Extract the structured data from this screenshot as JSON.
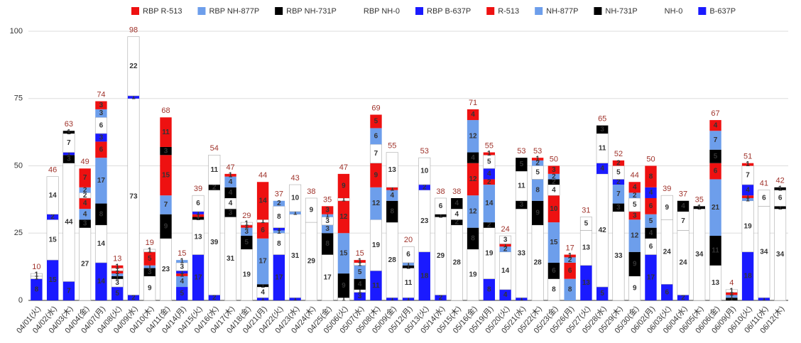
{
  "chart_data": {
    "type": "stacked_bar",
    "categories": [
      "04/01(火)",
      "04/02(水)",
      "04/03(木)",
      "04/04(金)",
      "04/07(月)",
      "04/08(火)",
      "04/09(水)",
      "04/10(木)",
      "04/11(金)",
      "04/14(月)",
      "04/15(火)",
      "04/16(水)",
      "04/17(木)",
      "04/18(金)",
      "04/21(月)",
      "04/22(火)",
      "04/23(水)",
      "04/24(木)",
      "04/25(金)",
      "05/06(火)",
      "05/07(水)",
      "05/08(木)",
      "05/09(金)",
      "05/12(月)",
      "05/13(火)",
      "05/14(水)",
      "05/15(木)",
      "05/16(金)",
      "05/19(月)",
      "05/20(火)",
      "05/21(水)",
      "05/22(木)",
      "05/23(金)",
      "05/26(月)",
      "05/27(火)",
      "05/28(水)",
      "05/29(木)",
      "05/30(金)",
      "06/02(月)",
      "06/03(火)",
      "06/04(水)",
      "06/05(木)",
      "06/06(金)",
      "06/09(月)",
      "06/10(火)",
      "06/11(水)",
      "06/12(木)"
    ],
    "series": [
      {
        "name": "B-637P",
        "color": "#1a1aff",
        "label_color": "#ffffff",
        "values": [
          8,
          15,
          7,
          null,
          14,
          5,
          2,
          null,
          null,
          5,
          17,
          2,
          null,
          null,
          1,
          17,
          1,
          null,
          null,
          null,
          3,
          11,
          1,
          1,
          18,
          2,
          null,
          null,
          8,
          4,
          1,
          null,
          null,
          null,
          13,
          5,
          null,
          null,
          17,
          6,
          2,
          null,
          null,
          null,
          18,
          1,
          null
        ]
      },
      {
        "name": "NH-0",
        "color": "#ffffff",
        "label_color": "#222222",
        "values": [
          1,
          15,
          44,
          27,
          14,
          3,
          73,
          9,
          23,
          null,
          13,
          39,
          31,
          19,
          4,
          8,
          31,
          29,
          17,
          1,
          1,
          19,
          28,
          11,
          23,
          29,
          28,
          19,
          19,
          14,
          33,
          28,
          8,
          null,
          13,
          42,
          33,
          9,
          6,
          24,
          24,
          34,
          13,
          null,
          19,
          34,
          34
        ]
      },
      {
        "name": "NH-731P",
        "color": "#000000",
        "label_color": "#ffffff",
        "values": [
          null,
          null,
          3,
          3,
          8,
          1,
          null,
          3,
          9,
          null,
          1,
          2,
          3,
          5,
          1,
          null,
          null,
          null,
          8,
          9,
          4,
          null,
          8,
          1,
          null,
          1,
          2,
          8,
          2,
          null,
          3,
          9,
          6,
          null,
          null,
          null,
          3,
          9,
          4,
          null,
          null,
          1,
          11,
          1,
          null,
          null,
          1
        ]
      },
      {
        "name": "NH-877P",
        "color": "#6d9eeb",
        "label_color": "#ffffff",
        "values": [
          null,
          null,
          null,
          4,
          17,
          1,
          null,
          1,
          7,
          4,
          null,
          null,
          null,
          3,
          17,
          1,
          1,
          null,
          3,
          15,
          5,
          12,
          4,
          1,
          null,
          null,
          null,
          12,
          14,
          2,
          null,
          8,
          15,
          8,
          null,
          null,
          7,
          12,
          5,
          null,
          null,
          null,
          21,
          1,
          1,
          null,
          null
        ]
      },
      {
        "name": "R-513",
        "color": "#ee1111",
        "label_color": "#ffffff",
        "values": [
          null,
          null,
          null,
          4,
          6,
          1,
          null,
          5,
          15,
          1,
          1,
          null,
          null,
          1,
          6,
          null,
          null,
          null,
          null,
          12,
          null,
          9,
          1,
          null,
          null,
          null,
          null,
          12,
          2,
          1,
          null,
          null,
          10,
          6,
          null,
          null,
          null,
          3,
          6,
          null,
          null,
          null,
          6,
          1,
          1,
          null,
          null
        ]
      },
      {
        "name": "RBP B-637P",
        "color": "#1a1aff",
        "label_color": "#ffffff",
        "values": [
          null,
          2,
          1,
          null,
          3,
          null,
          1,
          null,
          null,
          1,
          1,
          null,
          null,
          null,
          null,
          1,
          null,
          null,
          null,
          null,
          null,
          null,
          null,
          null,
          2,
          null,
          null,
          null,
          4,
          null,
          null,
          null,
          null,
          null,
          null,
          4,
          2,
          null,
          4,
          null,
          null,
          null,
          null,
          null,
          4,
          null,
          null
        ]
      },
      {
        "name": "RBP NH-0",
        "color": "#ffffff",
        "label_color": "#22cc22",
        "values": [
          1,
          14,
          7,
          2,
          6,
          1,
          22,
          1,
          null,
          3,
          6,
          11,
          4,
          1,
          1,
          8,
          10,
          9,
          3,
          1,
          1,
          7,
          13,
          6,
          10,
          6,
          4,
          null,
          5,
          3,
          11,
          5,
          4,
          null,
          5,
          11,
          5,
          5,
          null,
          9,
          7,
          null,
          null,
          1,
          7,
          6,
          6
        ]
      },
      {
        "name": "RBP NH-731P",
        "color": "#000000",
        "label_color": "#22cc22",
        "values": [
          null,
          null,
          1,
          null,
          null,
          null,
          null,
          null,
          3,
          null,
          null,
          null,
          4,
          null,
          null,
          null,
          null,
          null,
          null,
          null,
          null,
          null,
          null,
          null,
          null,
          null,
          4,
          4,
          null,
          null,
          5,
          null,
          2,
          null,
          null,
          3,
          null,
          null,
          null,
          null,
          4,
          null,
          5,
          null,
          null,
          null,
          1
        ]
      },
      {
        "name": "RBP NH-877P",
        "color": "#6d9eeb",
        "label_color": "#22cc22",
        "values": [
          null,
          null,
          null,
          2,
          3,
          null,
          null,
          null,
          null,
          1,
          null,
          null,
          4,
          null,
          null,
          2,
          null,
          null,
          1,
          null,
          null,
          6,
          null,
          null,
          null,
          null,
          null,
          12,
          null,
          null,
          null,
          2,
          2,
          2,
          null,
          null,
          null,
          2,
          null,
          null,
          null,
          null,
          7,
          null,
          null,
          null,
          null
        ]
      },
      {
        "name": "RBP R-513",
        "color": "#ee1111",
        "label_color": "#ffee00",
        "values": [
          null,
          null,
          null,
          7,
          3,
          1,
          null,
          null,
          11,
          null,
          null,
          null,
          1,
          null,
          14,
          null,
          null,
          null,
          3,
          9,
          1,
          5,
          null,
          null,
          null,
          null,
          null,
          4,
          1,
          null,
          null,
          1,
          3,
          1,
          null,
          null,
          2,
          4,
          8,
          null,
          null,
          null,
          4,
          null,
          1,
          null,
          null
        ]
      }
    ],
    "totals": [
      10,
      46,
      63,
      49,
      74,
      13,
      98,
      19,
      68,
      15,
      39,
      54,
      47,
      29,
      44,
      37,
      43,
      38,
      35,
      47,
      15,
      69,
      55,
      20,
      53,
      38,
      38,
      71,
      55,
      24,
      53,
      53,
      50,
      17,
      31,
      65,
      52,
      44,
      50,
      39,
      37,
      35,
      67,
      4,
      51,
      41,
      42
    ],
    "ylim": [
      0,
      100
    ],
    "yticks": [
      0,
      25,
      50,
      75,
      100
    ],
    "grid": true,
    "legend": "top"
  }
}
